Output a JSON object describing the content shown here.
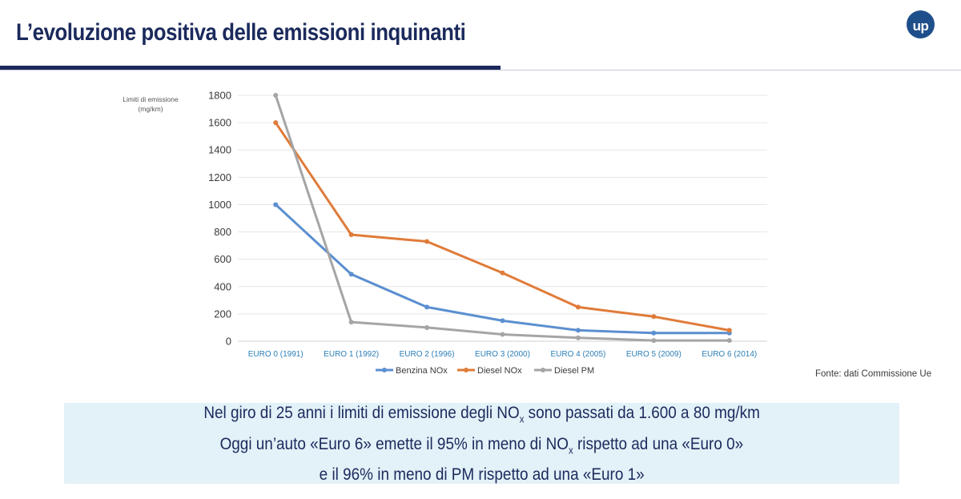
{
  "header": {
    "title": "L’evoluzione positiva delle emissioni inquinanti",
    "logo_text": "up"
  },
  "chart_data": {
    "type": "line",
    "ylabel": "Limiti di emissione (mg/km)",
    "ylabel_lines": [
      "Limiti di emissione",
      "(mg/km)"
    ],
    "ylim": [
      0,
      1800
    ],
    "yticks": [
      0,
      200,
      400,
      600,
      800,
      1000,
      1200,
      1400,
      1600,
      1800
    ],
    "grid": true,
    "legend": "bottom",
    "categories": [
      "EURO 0 (1991)",
      "EURO 1 (1992)",
      "EURO 2 (1996)",
      "EURO 3 (2000)",
      "EURO 4 (2005)",
      "EURO 5 (2009)",
      "EURO 6 (2014)"
    ],
    "series": [
      {
        "name": "Benzina NOx",
        "color": "#5b8fd0",
        "values": [
          1000,
          490,
          250,
          150,
          80,
          60,
          60
        ]
      },
      {
        "name": "Diesel NOx",
        "color": "#e07b39",
        "values": [
          1600,
          780,
          730,
          500,
          250,
          180,
          80
        ]
      },
      {
        "name": "Diesel PM",
        "color": "#a5a5a5",
        "values": [
          1800,
          140,
          100,
          50,
          25,
          5,
          5
        ]
      }
    ]
  },
  "source": "Fonte: dati Commissione Ue",
  "notes": {
    "line1_pre": "Nel giro di 25 anni i limiti di emissione degli NO",
    "line1_sub": "x",
    "line1_post": " sono passati da 1.600 a 80 mg/km",
    "line2_pre": "Oggi un’auto «Euro 6» emette il 95% in meno di NO",
    "line2_sub": "x",
    "line2_post": " rispetto ad una «Euro 0»",
    "line3": "e il 96% in meno di PM rispetto ad una «Euro 1»"
  }
}
